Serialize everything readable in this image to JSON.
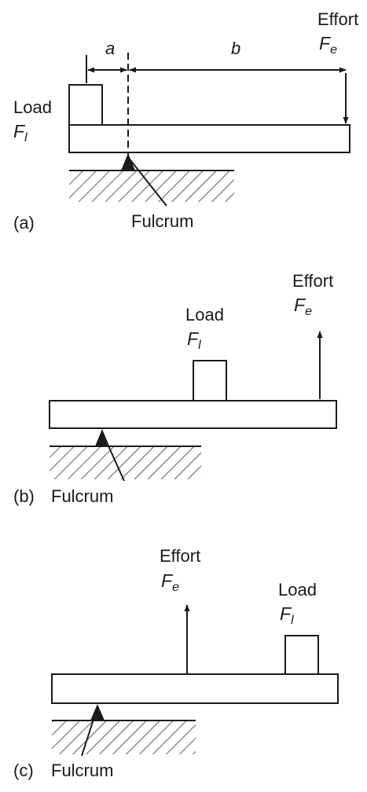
{
  "panels": {
    "a": {
      "tag": "(a)",
      "load": {
        "label": "Load",
        "symbol": "F",
        "subscript": "l"
      },
      "effort": {
        "label": "Effort",
        "symbol": "F",
        "subscript": "e"
      },
      "fulcrum": "Fulcrum",
      "dim_a": "a",
      "dim_b": "b"
    },
    "b": {
      "tag": "(b)",
      "load": {
        "label": "Load",
        "symbol": "F",
        "subscript": "l"
      },
      "effort": {
        "label": "Effort",
        "symbol": "F",
        "subscript": "e"
      },
      "fulcrum": "Fulcrum"
    },
    "c": {
      "tag": "(c)",
      "load": {
        "label": "Load",
        "symbol": "F",
        "subscript": "l"
      },
      "effort": {
        "label": "Effort",
        "symbol": "F",
        "subscript": "e"
      },
      "fulcrum": "Fulcrum"
    }
  }
}
